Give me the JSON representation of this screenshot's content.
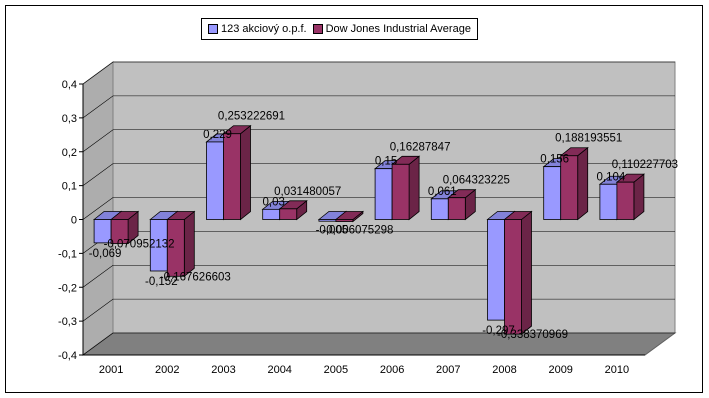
{
  "chart_data": {
    "type": "bar",
    "title": "",
    "xlabel": "",
    "ylabel": "",
    "categories": [
      "2001",
      "2002",
      "2003",
      "2004",
      "2005",
      "2006",
      "2007",
      "2008",
      "2009",
      "2010"
    ],
    "series": [
      {
        "name": "123 akciový o.p.f.",
        "color": "#9999ff",
        "values": [
          -0.069,
          -0.152,
          0.229,
          0.03,
          -0.005,
          0.15,
          0.061,
          -0.297,
          0.156,
          0.104
        ],
        "labels": [
          "-0,069",
          "-0,152",
          "0,229",
          "0,03",
          "-0,005",
          "0,15",
          "0,061",
          "-0,297",
          "0,156",
          "0,104"
        ]
      },
      {
        "name": "Dow Jones Industrial Average",
        "color": "#993366",
        "values": [
          -0.070952132,
          -0.167626603,
          0.253222691,
          0.031480057,
          -0.006075298,
          0.16287847,
          0.064323225,
          -0.338370969,
          0.188193551,
          0.110227703
        ],
        "labels": [
          "-0,070952132",
          "-0,167626603",
          "0,253222691",
          "0,031480057",
          "-0,006075298",
          "0,16287847",
          "0,064323225",
          "-0,338370969",
          "0,188193551",
          "0,110227703"
        ]
      }
    ],
    "ylim": [
      -0.4,
      0.4
    ],
    "y_ticks": [
      "-0,4",
      "-0,3",
      "-0,2",
      "-0,1",
      "0",
      "0,1",
      "0,2",
      "0,3",
      "0,4"
    ],
    "grid": true,
    "legend_position": "top-center",
    "wall_color": "#c0c0c0",
    "floor_color": "#808080"
  }
}
